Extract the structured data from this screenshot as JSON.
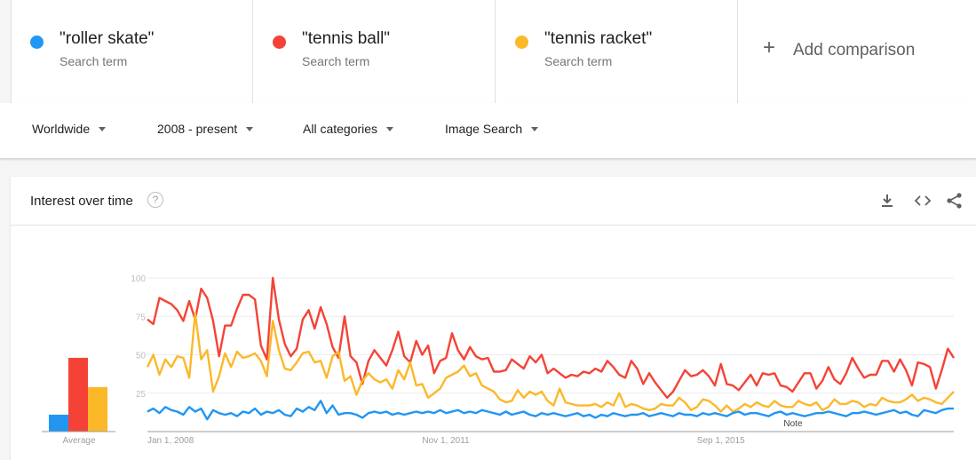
{
  "terms": [
    {
      "name": "\"roller skate\"",
      "sub": "Search term",
      "color": "#2196f3"
    },
    {
      "name": "\"tennis ball\"",
      "sub": "Search term",
      "color": "#f44336"
    },
    {
      "name": "\"tennis racket\"",
      "sub": "Search term",
      "color": "#fbb829"
    }
  ],
  "add_comparison": {
    "icon": "plus-icon",
    "label": "Add comparison"
  },
  "filters": {
    "region": "Worldwide",
    "time": "2008 - present",
    "category": "All categories",
    "search_type": "Image Search"
  },
  "card": {
    "title": "Interest over time",
    "help_glyph": "?",
    "icons": [
      "download-icon",
      "embed-icon",
      "share-icon"
    ]
  },
  "chart_data": {
    "type": "line",
    "ylim": [
      0,
      100
    ],
    "yticks": [
      "100",
      "75",
      "50",
      "25"
    ],
    "ytick_values": [
      100,
      75,
      50,
      25
    ],
    "xticks": [
      "Jan 1, 2008",
      "Nov 1, 2011",
      "Sep 1, 2015"
    ],
    "xtick_positions": [
      0,
      46,
      92
    ],
    "note_label": "Note",
    "note_position": 108,
    "average_label": "Average",
    "averages": [
      {
        "color": "#2196f3",
        "value": 11
      },
      {
        "color": "#f44336",
        "value": 48
      },
      {
        "color": "#fbb829",
        "value": 29
      }
    ],
    "series": [
      {
        "color": "#f44336",
        "values": [
          73,
          70,
          87,
          85,
          83,
          79,
          72,
          85,
          73,
          93,
          87,
          72,
          49,
          69,
          69,
          80,
          89,
          89,
          86,
          56,
          47,
          100,
          73,
          57,
          49,
          54,
          73,
          79,
          67,
          81,
          70,
          55,
          48,
          75,
          49,
          45,
          31,
          46,
          53,
          48,
          43,
          53,
          65,
          49,
          45,
          59,
          50,
          56,
          38,
          46,
          48,
          64,
          53,
          47,
          55,
          49,
          47,
          48,
          39,
          39,
          40,
          47,
          44,
          41,
          49,
          45,
          50,
          38,
          41,
          38,
          35,
          37,
          36,
          39,
          38,
          41,
          39,
          46,
          42,
          37,
          35,
          46,
          41,
          31,
          38,
          32,
          27,
          22,
          26,
          33,
          40,
          36,
          37,
          40,
          36,
          30,
          44,
          31,
          30,
          27,
          32,
          37,
          30,
          38,
          37,
          38,
          30,
          29,
          26,
          32,
          38,
          38,
          28,
          33,
          42,
          34,
          31,
          38,
          48,
          41,
          35,
          37,
          37,
          46,
          46,
          39,
          47,
          40,
          30,
          45,
          44,
          42,
          28,
          40,
          54,
          48
        ]
      },
      {
        "color": "#fbb829",
        "values": [
          42,
          50,
          37,
          47,
          42,
          49,
          48,
          35,
          77,
          47,
          53,
          26,
          36,
          51,
          42,
          52,
          48,
          49,
          51,
          46,
          36,
          72,
          53,
          41,
          40,
          45,
          51,
          52,
          45,
          46,
          35,
          49,
          52,
          33,
          36,
          24,
          33,
          38,
          34,
          32,
          34,
          28,
          40,
          34,
          45,
          30,
          31,
          22,
          25,
          28,
          35,
          37,
          39,
          43,
          36,
          38,
          30,
          28,
          26,
          21,
          19,
          20,
          27,
          22,
          26,
          24,
          26,
          20,
          17,
          28,
          19,
          18,
          17,
          17,
          17,
          18,
          16,
          19,
          17,
          25,
          16,
          18,
          17,
          15,
          14,
          15,
          18,
          17,
          17,
          22,
          19,
          14,
          16,
          21,
          20,
          17,
          13,
          17,
          13,
          15,
          18,
          16,
          19,
          17,
          16,
          20,
          17,
          16,
          16,
          20,
          18,
          17,
          19,
          14,
          16,
          21,
          18,
          18,
          20,
          19,
          16,
          18,
          17,
          22,
          20,
          19,
          19,
          21,
          24,
          20,
          22,
          21,
          19,
          18,
          22,
          26
        ]
      },
      {
        "color": "#2196f3",
        "values": [
          13,
          15,
          12,
          16,
          14,
          13,
          11,
          16,
          13,
          15,
          8,
          14,
          12,
          11,
          12,
          10,
          13,
          12,
          15,
          11,
          13,
          12,
          14,
          11,
          10,
          15,
          13,
          16,
          14,
          20,
          12,
          17,
          11,
          12,
          12,
          11,
          9,
          12,
          13,
          12,
          13,
          11,
          12,
          11,
          12,
          13,
          12,
          13,
          12,
          14,
          12,
          13,
          14,
          12,
          13,
          12,
          14,
          13,
          12,
          11,
          13,
          11,
          12,
          13,
          11,
          10,
          12,
          11,
          12,
          11,
          10,
          11,
          12,
          10,
          11,
          9,
          11,
          10,
          12,
          11,
          10,
          11,
          11,
          12,
          10,
          11,
          12,
          11,
          10,
          12,
          11,
          11,
          10,
          12,
          11,
          12,
          11,
          10,
          12,
          13,
          11,
          12,
          12,
          11,
          10,
          12,
          13,
          11,
          12,
          11,
          10,
          11,
          12,
          12,
          13,
          12,
          11,
          10,
          12,
          12,
          13,
          12,
          11,
          12,
          13,
          14,
          12,
          13,
          11,
          10,
          14,
          13,
          12,
          14,
          15,
          15
        ]
      }
    ]
  }
}
